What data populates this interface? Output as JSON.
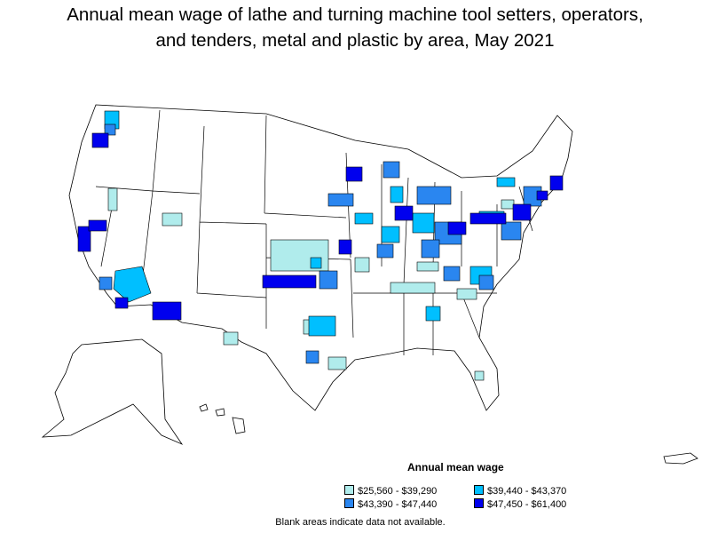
{
  "title_line1": "Annual mean wage of lathe and turning machine tool setters, operators,",
  "title_line2": "and tenders, metal and plastic by area, May 2021",
  "legend": {
    "title": "Annual mean wage",
    "items": [
      {
        "label": "$25,560 - $39,290",
        "color": "#b0ecec"
      },
      {
        "label": "$39,440 - $43,370",
        "color": "#00bfff"
      },
      {
        "label": "$43,390 - $47,440",
        "color": "#2a86f0"
      },
      {
        "label": "$47,450 - $61,400",
        "color": "#0000ee"
      }
    ]
  },
  "footnote": "Blank areas indicate data not available."
}
